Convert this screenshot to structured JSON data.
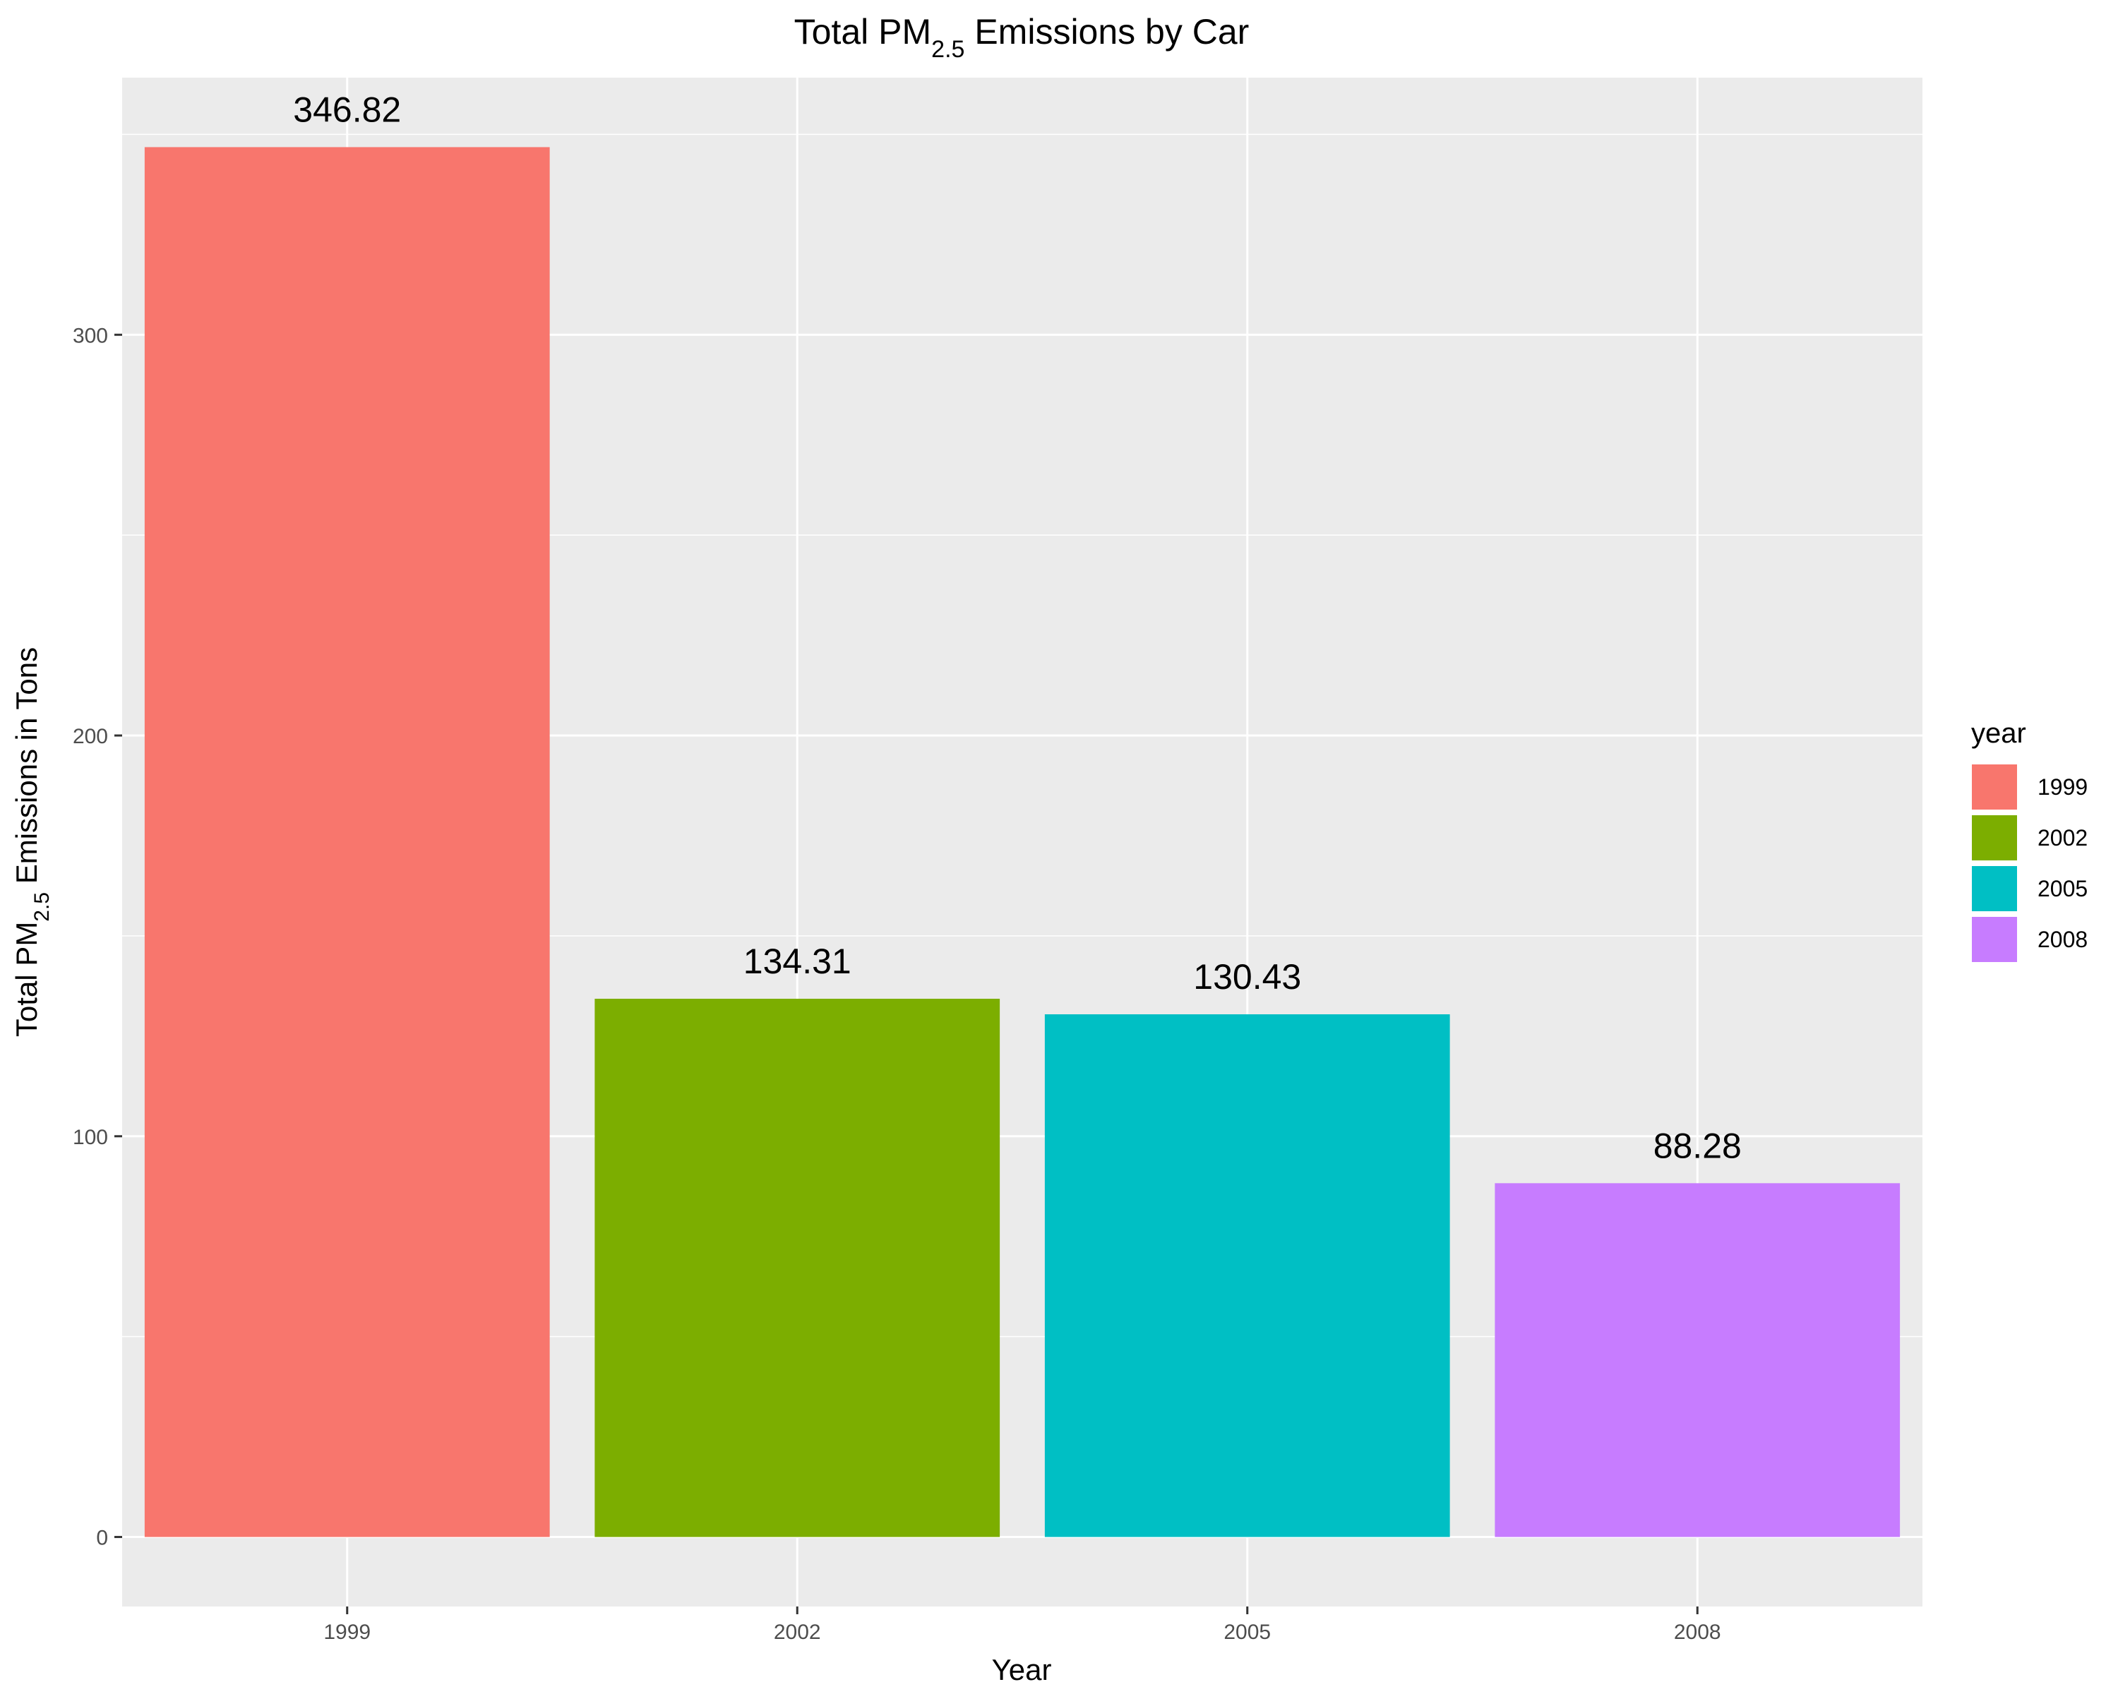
{
  "chart_data": {
    "type": "bar",
    "title": {
      "prefix": "Total PM",
      "subscript": "2.5",
      "suffix": " Emissions by Car"
    },
    "xlabel": "Year",
    "ylabel": {
      "prefix": "Total PM",
      "subscript": "2.5",
      "suffix": " Emissions in Tons"
    },
    "categories": [
      "1999",
      "2002",
      "2005",
      "2008"
    ],
    "values": [
      346.82,
      134.31,
      130.43,
      88.28
    ],
    "data_labels": [
      "346.82",
      "134.31",
      "130.43",
      "88.28"
    ],
    "colors": [
      "#F8766D",
      "#7CAE00",
      "#00BFC4",
      "#C77CFF"
    ],
    "ylim": [
      -17.34,
      364.16
    ],
    "y_ticks": [
      0,
      100,
      200,
      300
    ],
    "y_tick_labels": [
      "0",
      "100",
      "200",
      "300"
    ],
    "grid": true,
    "panel_background": "#EBEBEB",
    "grid_color": "#FFFFFF",
    "legend": {
      "title": "year",
      "position": "right",
      "entries": [
        "1999",
        "2002",
        "2005",
        "2008"
      ]
    }
  }
}
